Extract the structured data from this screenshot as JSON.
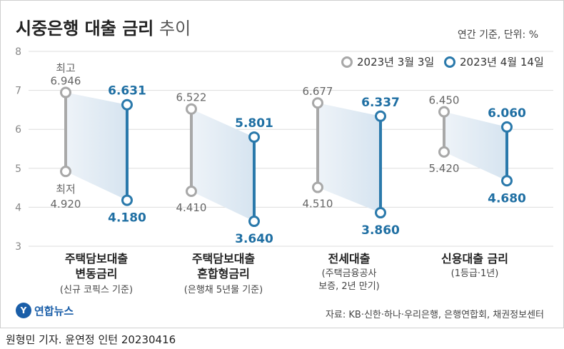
{
  "title": "시중은행 대출 금리",
  "subtitle": "추이",
  "unit": "연간 기준, 단위: %",
  "chart_data": {
    "type": "range",
    "ylim": [
      3,
      8
    ],
    "yticks": [
      "8",
      "7",
      "6",
      "5",
      "4",
      "3"
    ],
    "grid": true,
    "legend_position": "top-right",
    "series": [
      {
        "name": "2023년 3월 3일",
        "color": "#a8a8a8"
      },
      {
        "name": "2023년 4월 14일",
        "color": "#2a79ab"
      }
    ],
    "point_labels": {
      "max": "최고",
      "min": "최저"
    },
    "categories": [
      {
        "label1": "주택담보대출",
        "label2": "변동금리",
        "note1": "(신규 코픽스 기준)",
        "note2": "",
        "before": [
          6.946,
          4.92
        ],
        "after": [
          6.631,
          4.18
        ],
        "before_text": [
          "6.946",
          "4.920"
        ],
        "after_text": [
          "6.631",
          "4.180"
        ]
      },
      {
        "label1": "주택담보대출",
        "label2": "혼합형금리",
        "note1": "(은행채 5년물 기준)",
        "note2": "",
        "before": [
          6.522,
          4.41
        ],
        "after": [
          5.801,
          3.64
        ],
        "before_text": [
          "6.522",
          "4.410"
        ],
        "after_text": [
          "5.801",
          "3.640"
        ]
      },
      {
        "label1": "전세대출",
        "label2": "",
        "note1": "(주택금융공사",
        "note2": "보증, 2년 만기)",
        "before": [
          6.677,
          4.51
        ],
        "after": [
          6.337,
          3.86
        ],
        "before_text": [
          "6.677",
          "4.510"
        ],
        "after_text": [
          "6.337",
          "3.860"
        ]
      },
      {
        "label1": "신용대출 금리",
        "label2": "",
        "note1": "(1등급·1년)",
        "note2": "",
        "before": [
          6.45,
          5.42
        ],
        "after": [
          6.06,
          4.68
        ],
        "before_text": [
          "6.450",
          "5.420"
        ],
        "after_text": [
          "6.060",
          "4.680"
        ]
      }
    ],
    "colors": {
      "before": "#a8a8a8",
      "after": "#2a79ab",
      "after_text": "#1f6fa3",
      "before_text": "#666666",
      "band": "#d6e4f0",
      "grid": "#dddddd"
    }
  },
  "source": "자료: KB·신한·하나·우리은행, 은행연합회, 채권정보센터",
  "logo_text": "연합뉴스",
  "logo_mark": "Y",
  "credit": "원형민 기자. 윤연정 인턴  20230416"
}
